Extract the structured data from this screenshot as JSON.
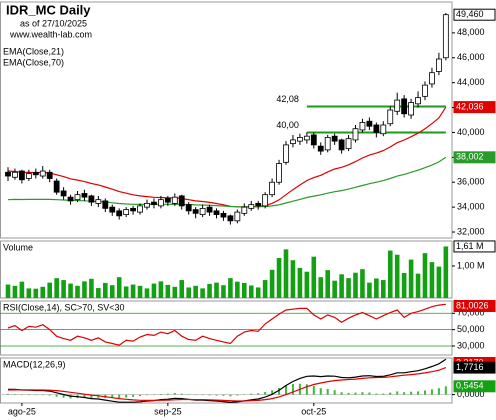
{
  "chart_data": [
    {
      "type": "candlestick",
      "title": "IDR_MC Daily",
      "subtitle": "as of 27/10/2025",
      "source": "www.wealth-lab.com",
      "categories": [
        null,
        null,
        "ago-25",
        null,
        null,
        null,
        null,
        null,
        null,
        null,
        null,
        null,
        null,
        null,
        null,
        null,
        null,
        null,
        null,
        null,
        null,
        null,
        null,
        "sep-25",
        null,
        null,
        null,
        null,
        null,
        null,
        null,
        null,
        null,
        null,
        null,
        null,
        null,
        null,
        null,
        null,
        null,
        null,
        null,
        null,
        "oct-25",
        null,
        null,
        null,
        null,
        null,
        null,
        null,
        null,
        null,
        null,
        null,
        null,
        null,
        null,
        null,
        null,
        null,
        null,
        null
      ],
      "open": [
        36800,
        36400,
        36900,
        36300,
        36800,
        36500,
        36800,
        36100,
        35300,
        34800,
        34600,
        35100,
        34900,
        34300,
        34500,
        34000,
        33700,
        33400,
        33900,
        33600,
        34000,
        34400,
        34100,
        34700,
        34300,
        34900,
        34200,
        33800,
        33400,
        34000,
        33700,
        33500,
        33300,
        32900,
        33500,
        33900,
        34300,
        34100,
        35000,
        36000,
        37600,
        39100,
        39300,
        39400,
        39800,
        38900,
        38600,
        39700,
        39400,
        38700,
        39400,
        40200,
        40900,
        40600,
        39900,
        40700,
        41700,
        42700,
        41400,
        42300,
        42900,
        43900,
        44900,
        46000
      ],
      "high": [
        37200,
        37100,
        37000,
        37000,
        37100,
        37300,
        37000,
        36300,
        35600,
        35000,
        35300,
        35400,
        35000,
        34900,
        34700,
        34200,
        33900,
        34000,
        34100,
        34300,
        34600,
        34700,
        34900,
        34900,
        35100,
        35000,
        34400,
        34000,
        34200,
        34200,
        33900,
        33700,
        33400,
        33800,
        34300,
        34500,
        34500,
        35200,
        36300,
        37800,
        39300,
        39800,
        39900,
        40000,
        40000,
        39200,
        39800,
        39900,
        39500,
        39800,
        40600,
        41100,
        41200,
        40800,
        40900,
        42100,
        43200,
        43000,
        42700,
        43300,
        44100,
        45200,
        46400,
        49600
      ],
      "low": [
        36100,
        36200,
        35900,
        36100,
        36300,
        36300,
        36000,
        35000,
        34600,
        34200,
        34400,
        34500,
        34100,
        34000,
        33600,
        33300,
        33000,
        33200,
        33400,
        33400,
        33800,
        33900,
        33900,
        34100,
        34100,
        33800,
        33400,
        33100,
        33200,
        33300,
        33100,
        32900,
        32600,
        32700,
        33300,
        33700,
        33800,
        33900,
        34800,
        35800,
        37400,
        38800,
        39000,
        39100,
        38700,
        38200,
        38400,
        39000,
        38300,
        38500,
        39200,
        40000,
        40200,
        39600,
        39700,
        40500,
        41400,
        41200,
        41100,
        42000,
        42600,
        43600,
        44600,
        45800
      ],
      "close": [
        36500,
        36800,
        36200,
        36700,
        36600,
        36900,
        36300,
        35200,
        34900,
        34500,
        35000,
        34800,
        34400,
        34600,
        33900,
        33600,
        33300,
        33800,
        33700,
        34100,
        34300,
        34200,
        34600,
        34400,
        34800,
        34100,
        33700,
        33500,
        33900,
        33600,
        33400,
        33200,
        32900,
        33600,
        34000,
        34200,
        34100,
        35000,
        36000,
        37500,
        39000,
        39400,
        39600,
        39700,
        39000,
        38500,
        39600,
        39300,
        38600,
        39500,
        40300,
        40800,
        40500,
        40000,
        40600,
        41800,
        42600,
        41500,
        42400,
        42800,
        43800,
        44800,
        45900,
        49460
      ],
      "close_label": "49,460",
      "up_color": "#ffffff",
      "down_color": "#000000",
      "ylim": [
        31520,
        50480
      ],
      "yticks": [
        {
          "value": 32000,
          "label": "32,000"
        },
        {
          "value": 34000,
          "label": "34,000"
        },
        {
          "value": 36000,
          "label": "36,000"
        },
        {
          "value": 38000,
          "label": "38,000"
        },
        {
          "value": 40000,
          "label": "40,000"
        },
        {
          "value": 42000,
          "label": "42,000"
        },
        {
          "value": 44000,
          "label": "44,000"
        },
        {
          "value": 46000,
          "label": "46,000"
        },
        {
          "value": 48000,
          "label": "48,000"
        }
      ],
      "series": [
        {
          "name": "EMA(Close,21)",
          "color": "#e00000",
          "last_label": "42,036",
          "values": [
            36900,
            36860,
            36800,
            36790,
            36770,
            36780,
            36740,
            36600,
            36450,
            36280,
            36170,
            36050,
            35900,
            35790,
            35620,
            35440,
            35250,
            35120,
            34990,
            34900,
            34850,
            34790,
            34770,
            34740,
            34750,
            34690,
            34600,
            34500,
            34450,
            34380,
            34290,
            34190,
            34070,
            34030,
            34030,
            34040,
            34040,
            34130,
            34300,
            34590,
            35000,
            35400,
            35780,
            36140,
            36370,
            36560,
            36830,
            37060,
            37200,
            37400,
            37660,
            37950,
            38180,
            38340,
            38540,
            38840,
            39180,
            39390,
            39660,
            39940,
            40290,
            40700,
            41170,
            42036
          ]
        },
        {
          "name": "EMA(Close,70)",
          "color": "#2a9a2a",
          "last_label": "38,002",
          "values": [
            34600,
            34620,
            34610,
            34620,
            34620,
            34630,
            34620,
            34600,
            34570,
            34540,
            34530,
            34510,
            34470,
            34450,
            34410,
            34350,
            34290,
            34250,
            34230,
            34220,
            34220,
            34220,
            34230,
            34230,
            34240,
            34230,
            34210,
            34180,
            34170,
            34150,
            34120,
            34090,
            34050,
            34030,
            34030,
            34030,
            34030,
            34050,
            34100,
            34190,
            34330,
            34480,
            34620,
            34770,
            34890,
            34990,
            35120,
            35240,
            35330,
            35450,
            35590,
            35740,
            35880,
            36000,
            36130,
            36300,
            36490,
            36630,
            36800,
            36970,
            37170,
            37380,
            37630,
            38002
          ]
        }
      ],
      "levels": [
        {
          "value": 42080,
          "label": "42,08"
        },
        {
          "value": 40000,
          "label": "40,00"
        }
      ],
      "level_color": "#1a9a1a"
    },
    {
      "type": "bar",
      "title": "Volume",
      "color": "#13a013",
      "last_label": "1,61 M",
      "values": [
        420000,
        380000,
        510000,
        300000,
        290000,
        350000,
        480000,
        620000,
        560000,
        450000,
        380000,
        520000,
        600000,
        310000,
        470000,
        400000,
        650000,
        360000,
        420000,
        380000,
        300000,
        450000,
        520000,
        410000,
        350000,
        560000,
        330000,
        380000,
        300000,
        440000,
        480000,
        400000,
        620000,
        510000,
        470000,
        390000,
        330000,
        560000,
        880000,
        1250000,
        1520000,
        1180000,
        940000,
        820000,
        1290000,
        650000,
        870000,
        540000,
        740000,
        620000,
        790000,
        900000,
        480000,
        610000,
        560000,
        1480000,
        1350000,
        780000,
        1200000,
        760000,
        1400000,
        1120000,
        980000,
        1610000
      ],
      "ylim": [
        0,
        1780000
      ],
      "yticks": [
        {
          "value": 1000000,
          "label": "1,00 M"
        }
      ]
    },
    {
      "type": "line",
      "title": "RSI(Close,14), SC>70, SV<30",
      "color": "#e00000",
      "band_color": "#1a9a1a",
      "last_label": "81,0026",
      "values": [
        52,
        55,
        49,
        54,
        53,
        56,
        50,
        42,
        39,
        37,
        42,
        40,
        37,
        40,
        35,
        33,
        31,
        37,
        36,
        41,
        44,
        43,
        47,
        45,
        49,
        42,
        38,
        37,
        42,
        39,
        37,
        35,
        33,
        42,
        47,
        49,
        48,
        57,
        63,
        69,
        74,
        75,
        76,
        76,
        68,
        63,
        68,
        65,
        59,
        64,
        68,
        71,
        67,
        63,
        67,
        71,
        74,
        65,
        70,
        72,
        75,
        78,
        80,
        81.0026
      ],
      "ylim": [
        19,
        85
      ],
      "yticks": [
        {
          "value": 70,
          "label": "70,000"
        },
        {
          "value": 50,
          "label": "50,000"
        },
        {
          "value": 30,
          "label": "30,000"
        }
      ]
    },
    {
      "type": "line",
      "title": "MACD(12,26,9)",
      "series": [
        {
          "color": "#000000",
          "last_label": "2,3170",
          "box_color": "#e00000",
          "values": [
            0.35,
            0.34,
            0.3,
            0.29,
            0.27,
            0.27,
            0.23,
            0.12,
            0.01,
            -0.1,
            -0.14,
            -0.19,
            -0.26,
            -0.29,
            -0.36,
            -0.43,
            -0.5,
            -0.5,
            -0.5,
            -0.47,
            -0.42,
            -0.39,
            -0.33,
            -0.3,
            -0.24,
            -0.26,
            -0.31,
            -0.36,
            -0.36,
            -0.39,
            -0.42,
            -0.46,
            -0.51,
            -0.48,
            -0.41,
            -0.34,
            -0.29,
            -0.16,
            0.02,
            0.28,
            0.6,
            0.86,
            1.06,
            1.2,
            1.22,
            1.18,
            1.22,
            1.21,
            1.12,
            1.1,
            1.15,
            1.22,
            1.24,
            1.19,
            1.2,
            1.3,
            1.43,
            1.43,
            1.5,
            1.57,
            1.69,
            1.84,
            2.02,
            2.317
          ]
        },
        {
          "color": "#e00000",
          "last_label": "1,7716",
          "box_color": "#000000",
          "values": [
            0.3,
            0.31,
            0.31,
            0.31,
            0.3,
            0.3,
            0.29,
            0.26,
            0.21,
            0.15,
            0.09,
            0.03,
            -0.03,
            -0.08,
            -0.14,
            -0.2,
            -0.26,
            -0.31,
            -0.35,
            -0.37,
            -0.38,
            -0.38,
            -0.37,
            -0.36,
            -0.34,
            -0.32,
            -0.32,
            -0.33,
            -0.33,
            -0.34,
            -0.36,
            -0.38,
            -0.4,
            -0.42,
            -0.42,
            -0.4,
            -0.38,
            -0.33,
            -0.26,
            -0.15,
            0.0,
            0.17,
            0.35,
            0.52,
            0.66,
            0.76,
            0.85,
            0.92,
            0.96,
            0.99,
            1.02,
            1.06,
            1.1,
            1.12,
            1.13,
            1.17,
            1.22,
            1.27,
            1.31,
            1.36,
            1.42,
            1.5,
            1.6,
            1.7716
          ]
        },
        {
          "type": "bar",
          "color": "#3cb83c",
          "last_label": "0,5454",
          "box_color": "#13a013",
          "values": [
            0.05,
            0.03,
            -0.01,
            -0.02,
            -0.03,
            -0.03,
            -0.06,
            -0.14,
            -0.2,
            -0.25,
            -0.23,
            -0.22,
            -0.23,
            -0.21,
            -0.22,
            -0.23,
            -0.24,
            -0.19,
            -0.15,
            -0.1,
            -0.04,
            -0.01,
            0.04,
            0.06,
            0.1,
            0.06,
            0.01,
            -0.03,
            -0.03,
            -0.05,
            -0.06,
            -0.08,
            -0.11,
            -0.06,
            0.01,
            0.06,
            0.09,
            0.17,
            0.28,
            0.43,
            0.6,
            0.69,
            0.71,
            0.68,
            0.56,
            0.42,
            0.37,
            0.29,
            0.16,
            0.11,
            0.13,
            0.16,
            0.14,
            0.07,
            0.07,
            0.13,
            0.21,
            0.16,
            0.19,
            0.21,
            0.27,
            0.34,
            0.42,
            0.5454
          ]
        }
      ],
      "ylim": [
        -0.55,
        2.4
      ],
      "yticks": [
        {
          "value": 0,
          "label": "0,0000"
        }
      ]
    }
  ]
}
